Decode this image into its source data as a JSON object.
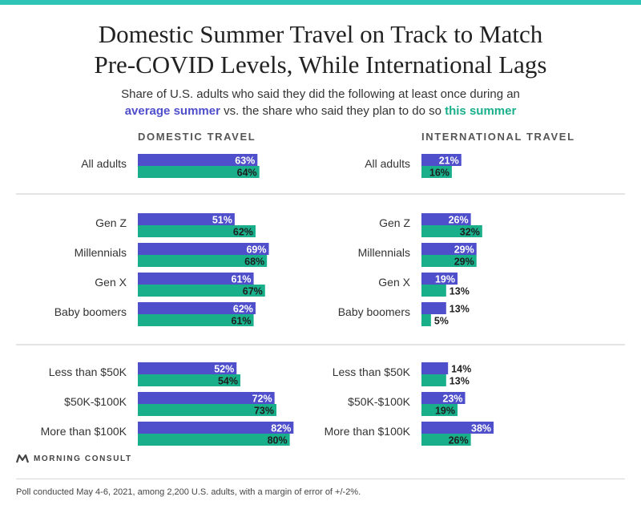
{
  "title_line1": "Domestic Summer Travel on Track to Match",
  "title_line2": "Pre-COVID Levels, While International Lags",
  "subtitle": {
    "line1": "Share of U.S. adults who said they did the following at least once during an",
    "highlight_a": "average summer",
    "mid": " vs. the share who said they plan to do so ",
    "highlight_b": "this summer"
  },
  "colors": {
    "average_summer": "#4f4fcc",
    "this_summer": "#1aaf8b",
    "accent_bar": "#2ec4b6"
  },
  "logo_text": "MORNING CONSULT",
  "footnote": "Poll conducted May 4-6, 2021, among 2,200 U.S. adults, with a margin of error of +/-2%.",
  "chart_data": [
    {
      "type": "bar",
      "title": "DOMESTIC TRAVEL",
      "categories": [
        "All adults",
        "Gen Z",
        "Millennials",
        "Gen X",
        "Baby boomers",
        "Less than $50K",
        "$50K-$100K",
        "More than $100K"
      ],
      "series": [
        {
          "name": "average summer",
          "values": [
            63,
            51,
            69,
            61,
            62,
            52,
            72,
            82
          ]
        },
        {
          "name": "this summer",
          "values": [
            64,
            62,
            68,
            67,
            61,
            54,
            73,
            80
          ]
        }
      ],
      "value_format": "%"
    },
    {
      "type": "bar",
      "title": "INTERNATIONAL TRAVEL",
      "categories": [
        "All adults",
        "Gen Z",
        "Millennials",
        "Gen X",
        "Baby boomers",
        "Less than $50K",
        "$50K-$100K",
        "More than $100K"
      ],
      "series": [
        {
          "name": "average summer",
          "values": [
            21,
            26,
            29,
            19,
            13,
            14,
            23,
            38
          ]
        },
        {
          "name": "this summer",
          "values": [
            16,
            32,
            29,
            13,
            5,
            13,
            19,
            26
          ]
        }
      ],
      "value_format": "%"
    }
  ]
}
